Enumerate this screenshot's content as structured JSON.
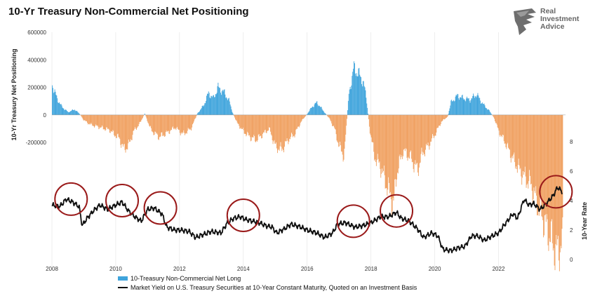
{
  "title": "10-Yr Treasury Non-Commercial Net Positioning",
  "logo": {
    "line1": "Real",
    "line2": "Investment",
    "line3": "Advice"
  },
  "left_axis_title": "10-Yr Treasury Net Positioning",
  "right_axis_title": "10-Year Rate",
  "legend": {
    "bar_label": "10-Treasury Non-Commercial Net Long",
    "line_label": "Market Yield on U.S. Treasury Securities at 10-Year Constant Maturity, Quoted on an Investment Basis"
  },
  "colors": {
    "positive": "#3fa4dc",
    "negative": "#f0a060",
    "line": "#111111",
    "circle": "#9a1a1a"
  },
  "chart_data": [
    {
      "type": "bar",
      "name": "10-Treasury Non-Commercial Net Long",
      "x_range": [
        2008,
        2024.1
      ],
      "ylim": [
        -1100000,
        600000
      ],
      "left_ticks": [
        "600000",
        "400000",
        "200000",
        "0",
        "-200000"
      ],
      "left_tick_values": [
        600000,
        400000,
        200000,
        0,
        -200000
      ],
      "x_ticks": [
        "2008",
        "2010",
        "2012",
        "2014",
        "2016",
        "2018",
        "2020",
        "2022"
      ],
      "x_tick_values": [
        2008,
        2010,
        2012,
        2014,
        2016,
        2018,
        2020,
        2022
      ],
      "points": [
        [
          2008.0,
          220000
        ],
        [
          2008.15,
          120000
        ],
        [
          2008.3,
          60000
        ],
        [
          2008.5,
          20000
        ],
        [
          2008.7,
          40000
        ],
        [
          2008.85,
          10000
        ],
        [
          2009.0,
          -40000
        ],
        [
          2009.2,
          -70000
        ],
        [
          2009.5,
          -90000
        ],
        [
          2009.8,
          -110000
        ],
        [
          2010.1,
          -170000
        ],
        [
          2010.25,
          -250000
        ],
        [
          2010.4,
          -220000
        ],
        [
          2010.55,
          -120000
        ],
        [
          2010.75,
          -60000
        ],
        [
          2010.9,
          10000
        ],
        [
          2011.1,
          -110000
        ],
        [
          2011.35,
          -160000
        ],
        [
          2011.6,
          -130000
        ],
        [
          2011.85,
          -90000
        ],
        [
          2012.1,
          -140000
        ],
        [
          2012.35,
          -100000
        ],
        [
          2012.55,
          10000
        ],
        [
          2012.75,
          70000
        ],
        [
          2012.9,
          160000
        ],
        [
          2013.05,
          120000
        ],
        [
          2013.2,
          200000
        ],
        [
          2013.4,
          160000
        ],
        [
          2013.55,
          100000
        ],
        [
          2013.65,
          20000
        ],
        [
          2013.8,
          -60000
        ],
        [
          2014.0,
          -120000
        ],
        [
          2014.2,
          -160000
        ],
        [
          2014.4,
          -180000
        ],
        [
          2014.6,
          -140000
        ],
        [
          2014.8,
          -100000
        ],
        [
          2015.0,
          -230000
        ],
        [
          2015.2,
          -250000
        ],
        [
          2015.4,
          -180000
        ],
        [
          2015.6,
          -140000
        ],
        [
          2015.8,
          -50000
        ],
        [
          2016.0,
          10000
        ],
        [
          2016.15,
          60000
        ],
        [
          2016.3,
          90000
        ],
        [
          2016.5,
          30000
        ],
        [
          2016.7,
          -30000
        ],
        [
          2016.85,
          -100000
        ],
        [
          2017.0,
          -230000
        ],
        [
          2017.15,
          -300000
        ],
        [
          2017.3,
          150000
        ],
        [
          2017.45,
          340000
        ],
        [
          2017.6,
          300000
        ],
        [
          2017.75,
          240000
        ],
        [
          2017.85,
          120000
        ],
        [
          2017.95,
          -100000
        ],
        [
          2018.1,
          -300000
        ],
        [
          2018.3,
          -380000
        ],
        [
          2018.5,
          -520000
        ],
        [
          2018.7,
          -650000
        ],
        [
          2018.8,
          -420000
        ],
        [
          2019.0,
          -260000
        ],
        [
          2019.2,
          -300000
        ],
        [
          2019.45,
          -400000
        ],
        [
          2019.6,
          -280000
        ],
        [
          2019.8,
          -220000
        ],
        [
          2020.0,
          -140000
        ],
        [
          2020.2,
          -50000
        ],
        [
          2020.4,
          -10000
        ],
        [
          2020.5,
          90000
        ],
        [
          2020.7,
          140000
        ],
        [
          2020.9,
          120000
        ],
        [
          2021.1,
          110000
        ],
        [
          2021.3,
          150000
        ],
        [
          2021.5,
          80000
        ],
        [
          2021.7,
          30000
        ],
        [
          2021.85,
          -20000
        ],
        [
          2022.0,
          -120000
        ],
        [
          2022.2,
          -200000
        ],
        [
          2022.4,
          -300000
        ],
        [
          2022.6,
          -380000
        ],
        [
          2022.8,
          -450000
        ],
        [
          2023.0,
          -500000
        ],
        [
          2023.2,
          -640000
        ],
        [
          2023.4,
          -760000
        ],
        [
          2023.6,
          -880000
        ],
        [
          2023.8,
          -1000000
        ],
        [
          2024.0,
          -920000
        ]
      ]
    },
    {
      "type": "line",
      "name": "Market Yield on U.S. Treasury Securities at 10-Year Constant Maturity, Quoted on an Investment Basis",
      "ylim": [
        0,
        10
      ],
      "right_ticks": [
        "8",
        "6",
        "4",
        "2",
        "0"
      ],
      "right_tick_values": [
        8,
        6,
        4,
        2,
        0
      ],
      "points": [
        [
          2008.0,
          3.7
        ],
        [
          2008.25,
          3.6
        ],
        [
          2008.45,
          4.1
        ],
        [
          2008.65,
          3.9
        ],
        [
          2008.85,
          3.6
        ],
        [
          2008.95,
          2.3
        ],
        [
          2009.1,
          2.8
        ],
        [
          2009.3,
          3.3
        ],
        [
          2009.5,
          3.7
        ],
        [
          2009.75,
          3.4
        ],
        [
          2010.0,
          3.7
        ],
        [
          2010.2,
          3.9
        ],
        [
          2010.4,
          3.3
        ],
        [
          2010.6,
          2.9
        ],
        [
          2010.8,
          2.6
        ],
        [
          2011.0,
          3.4
        ],
        [
          2011.2,
          3.5
        ],
        [
          2011.45,
          3.1
        ],
        [
          2011.6,
          2.2
        ],
        [
          2011.85,
          2.0
        ],
        [
          2012.05,
          2.0
        ],
        [
          2012.3,
          1.9
        ],
        [
          2012.5,
          1.5
        ],
        [
          2012.75,
          1.7
        ],
        [
          2013.0,
          1.9
        ],
        [
          2013.3,
          1.8
        ],
        [
          2013.5,
          2.5
        ],
        [
          2013.7,
          2.8
        ],
        [
          2013.9,
          2.9
        ],
        [
          2014.1,
          2.7
        ],
        [
          2014.3,
          2.6
        ],
        [
          2014.5,
          2.5
        ],
        [
          2014.7,
          2.3
        ],
        [
          2014.9,
          2.2
        ],
        [
          2015.05,
          1.8
        ],
        [
          2015.3,
          2.1
        ],
        [
          2015.5,
          2.4
        ],
        [
          2015.8,
          2.2
        ],
        [
          2016.0,
          2.0
        ],
        [
          2016.3,
          1.8
        ],
        [
          2016.55,
          1.5
        ],
        [
          2016.8,
          1.8
        ],
        [
          2016.95,
          2.4
        ],
        [
          2017.2,
          2.5
        ],
        [
          2017.5,
          2.2
        ],
        [
          2017.75,
          2.3
        ],
        [
          2018.0,
          2.5
        ],
        [
          2018.3,
          2.9
        ],
        [
          2018.55,
          2.9
        ],
        [
          2018.8,
          3.2
        ],
        [
          2018.95,
          2.8
        ],
        [
          2019.2,
          2.6
        ],
        [
          2019.45,
          2.1
        ],
        [
          2019.65,
          1.5
        ],
        [
          2019.9,
          1.8
        ],
        [
          2020.1,
          1.6
        ],
        [
          2020.25,
          0.7
        ],
        [
          2020.5,
          0.6
        ],
        [
          2020.75,
          0.8
        ],
        [
          2020.95,
          0.9
        ],
        [
          2021.15,
          1.6
        ],
        [
          2021.35,
          1.6
        ],
        [
          2021.55,
          1.3
        ],
        [
          2021.8,
          1.6
        ],
        [
          2022.0,
          1.8
        ],
        [
          2022.2,
          2.4
        ],
        [
          2022.45,
          3.1
        ],
        [
          2022.6,
          2.8
        ],
        [
          2022.8,
          4.1
        ],
        [
          2022.95,
          3.7
        ],
        [
          2023.1,
          3.8
        ],
        [
          2023.3,
          3.4
        ],
        [
          2023.5,
          3.8
        ],
        [
          2023.7,
          4.3
        ],
        [
          2023.85,
          4.9
        ],
        [
          2024.0,
          4.6
        ]
      ]
    }
  ],
  "annotations": {
    "circles": [
      {
        "x": 2008.6,
        "y": 4.1
      },
      {
        "x": 2010.2,
        "y": 4.0
      },
      {
        "x": 2011.4,
        "y": 3.5
      },
      {
        "x": 2014.0,
        "y": 3.0
      },
      {
        "x": 2017.45,
        "y": 2.6
      },
      {
        "x": 2018.8,
        "y": 3.3
      },
      {
        "x": 2023.8,
        "y": 4.6
      }
    ]
  }
}
